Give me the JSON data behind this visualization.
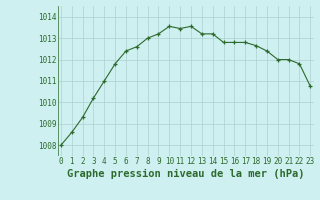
{
  "x": [
    0,
    1,
    2,
    3,
    4,
    5,
    6,
    7,
    8,
    9,
    10,
    11,
    12,
    13,
    14,
    15,
    16,
    17,
    18,
    19,
    20,
    21,
    22,
    23
  ],
  "y": [
    1008.0,
    1008.6,
    1009.3,
    1010.2,
    1011.0,
    1011.8,
    1012.4,
    1012.6,
    1013.0,
    1013.2,
    1013.55,
    1013.45,
    1013.55,
    1013.2,
    1013.2,
    1012.8,
    1012.8,
    1012.8,
    1012.65,
    1012.4,
    1012.0,
    1012.0,
    1011.8,
    1010.75
  ],
  "line_color": "#2d6a2d",
  "marker_color": "#2d6a2d",
  "bg_color": "#cef0f0",
  "grid_color": "#aed0d0",
  "xlabel": "Graphe pression niveau de la mer (hPa)",
  "xlabel_fontsize": 7.5,
  "tick_fontsize": 5.5,
  "ylabel_ticks": [
    1008,
    1009,
    1010,
    1011,
    1012,
    1013,
    1014
  ],
  "xticks": [
    0,
    1,
    2,
    3,
    4,
    5,
    6,
    7,
    8,
    9,
    10,
    11,
    12,
    13,
    14,
    15,
    16,
    17,
    18,
    19,
    20,
    21,
    22,
    23
  ],
  "ylim": [
    1007.5,
    1014.5
  ],
  "xlim": [
    -0.3,
    23.3
  ]
}
